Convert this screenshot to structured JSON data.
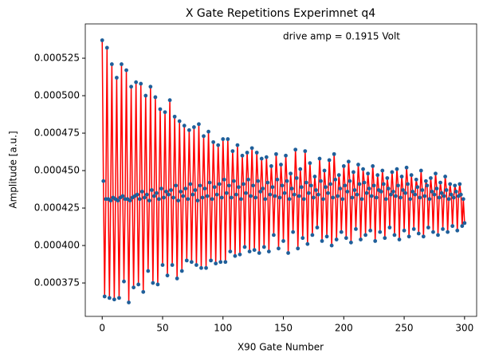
{
  "chart_data": {
    "type": "line",
    "title": "X Gate Repetitions Experimnet q4",
    "xlabel": "X90 Gate Number",
    "ylabel": "Amplitude [a.u.]",
    "annotation": "drive amp = 0.1915 Volt",
    "color": "#ff0000",
    "marker_color": "#1f5f9a",
    "xlim": [
      -14,
      310
    ],
    "ylim": [
      0.0003527,
      0.0005479
    ],
    "xticks": [
      0,
      50,
      100,
      150,
      200,
      250,
      300
    ],
    "yticks": [
      0.000375,
      {
        "value": 0.0004,
        "label": "0.000400"
      },
      0.000425,
      {
        "value": 0.00045,
        "label": "0.000450"
      },
      0.000475,
      {
        "value": 0.0005,
        "label": "0.000500"
      },
      0.000525
    ],
    "x": [
      0,
      1,
      2,
      3,
      4,
      5,
      6,
      7,
      8,
      9,
      10,
      11,
      12,
      13,
      14,
      15,
      16,
      17,
      18,
      19,
      20,
      21,
      22,
      23,
      24,
      25,
      26,
      27,
      28,
      29,
      30,
      31,
      32,
      33,
      34,
      35,
      36,
      37,
      38,
      39,
      40,
      41,
      42,
      43,
      44,
      45,
      46,
      47,
      48,
      49,
      50,
      51,
      52,
      53,
      54,
      55,
      56,
      57,
      58,
      59,
      60,
      61,
      62,
      63,
      64,
      65,
      66,
      67,
      68,
      69,
      70,
      71,
      72,
      73,
      74,
      75,
      76,
      77,
      78,
      79,
      80,
      81,
      82,
      83,
      84,
      85,
      86,
      87,
      88,
      89,
      90,
      91,
      92,
      93,
      94,
      95,
      96,
      97,
      98,
      99,
      100,
      101,
      102,
      103,
      104,
      105,
      106,
      107,
      108,
      109,
      110,
      111,
      112,
      113,
      114,
      115,
      116,
      117,
      118,
      119,
      120,
      121,
      122,
      123,
      124,
      125,
      126,
      127,
      128,
      129,
      130,
      131,
      132,
      133,
      134,
      135,
      136,
      137,
      138,
      139,
      140,
      141,
      142,
      143,
      144,
      145,
      146,
      147,
      148,
      149,
      150,
      151,
      152,
      153,
      154,
      155,
      156,
      157,
      158,
      159,
      160,
      161,
      162,
      163,
      164,
      165,
      166,
      167,
      168,
      169,
      170,
      171,
      172,
      173,
      174,
      175,
      176,
      177,
      178,
      179,
      180,
      181,
      182,
      183,
      184,
      185,
      186,
      187,
      188,
      189,
      190,
      191,
      192,
      193,
      194,
      195,
      196,
      197,
      198,
      199,
      200,
      201,
      202,
      203,
      204,
      205,
      206,
      207,
      208,
      209,
      210,
      211,
      212,
      213,
      214,
      215,
      216,
      217,
      218,
      219,
      220,
      221,
      222,
      223,
      224,
      225,
      226,
      227,
      228,
      229,
      230,
      231,
      232,
      233,
      234,
      235,
      236,
      237,
      238,
      239,
      240,
      241,
      242,
      243,
      244,
      245,
      246,
      247,
      248,
      249,
      250,
      251,
      252,
      253,
      254,
      255,
      256,
      257,
      258,
      259,
      260,
      261,
      262,
      263,
      264,
      265,
      266,
      267,
      268,
      269,
      270,
      271,
      272,
      273,
      274,
      275,
      276,
      277,
      278,
      279,
      280,
      281,
      282,
      283,
      284,
      285,
      286,
      287,
      288,
      289,
      290,
      291,
      292,
      293,
      294,
      295,
      296,
      297,
      298,
      299,
      300
    ],
    "values": [
      0.000537,
      0.000443,
      0.000366,
      0.000431,
      0.000532,
      0.000431,
      0.000365,
      0.00043,
      0.000521,
      0.000432,
      0.000364,
      0.000431,
      0.000512,
      0.00043,
      0.000365,
      0.000432,
      0.000521,
      0.000433,
      0.000376,
      0.000431,
      0.000517,
      0.000431,
      0.000362,
      0.00043,
      0.000506,
      0.000432,
      0.000372,
      0.000433,
      0.000509,
      0.000434,
      0.000374,
      0.000431,
      0.000508,
      0.000436,
      0.000369,
      0.000432,
      0.0005,
      0.000434,
      0.000383,
      0.00043,
      0.000506,
      0.000437,
      0.000375,
      0.000433,
      0.000499,
      0.000435,
      0.000374,
      0.000431,
      0.000491,
      0.000438,
      0.000387,
      0.000432,
      0.000489,
      0.000436,
      0.00038,
      0.000434,
      0.000497,
      0.000437,
      0.000387,
      0.000432,
      0.000486,
      0.00044,
      0.000378,
      0.00043,
      0.000483,
      0.000436,
      0.000383,
      0.000433,
      0.00048,
      0.000438,
      0.00039,
      0.000431,
      0.000477,
      0.000441,
      0.000389,
      0.000434,
      0.000479,
      0.000437,
      0.000387,
      0.00043,
      0.000481,
      0.00044,
      0.000385,
      0.000432,
      0.000473,
      0.000438,
      0.000385,
      0.000433,
      0.000476,
      0.000442,
      0.00039,
      0.000431,
      0.000469,
      0.000439,
      0.000388,
      0.000434,
      0.000467,
      0.000441,
      0.000389,
      0.000432,
      0.000471,
      0.000444,
      0.000389,
      0.000435,
      0.000471,
      0.00044,
      0.000396,
      0.000432,
      0.000463,
      0.000443,
      0.000393,
      0.000434,
      0.000467,
      0.000439,
      0.000394,
      0.000431,
      0.00046,
      0.000441,
      0.000399,
      0.000435,
      0.000462,
      0.000444,
      0.000396,
      0.000433,
      0.000465,
      0.00044,
      0.000397,
      0.000432,
      0.000462,
      0.000443,
      0.000395,
      0.000436,
      0.000458,
      0.000438,
      0.000399,
      0.000431,
      0.000459,
      0.000442,
      0.000396,
      0.000434,
      0.000453,
      0.000439,
      0.000407,
      0.000433,
      0.000461,
      0.000444,
      0.000398,
      0.000432,
      0.000454,
      0.00044,
      0.000403,
      0.000435,
      0.00046,
      0.000443,
      0.000395,
      0.000431,
      0.000448,
      0.000438,
      0.000409,
      0.000434,
      0.000464,
      0.000445,
      0.000398,
      0.000433,
      0.000451,
      0.000439,
      0.000405,
      0.000431,
      0.000463,
      0.000442,
      0.000401,
      0.000435,
      0.000455,
      0.00044,
      0.000407,
      0.000432,
      0.000446,
      0.000437,
      0.000412,
      0.000434,
      0.000458,
      0.000443,
      0.000403,
      0.000431,
      0.00045,
      0.000439,
      0.000406,
      0.000435,
      0.000457,
      0.000441,
      0.0004,
      0.000432,
      0.000461,
      0.000444,
      0.000404,
      0.000433,
      0.000447,
      0.000438,
      0.000409,
      0.000431,
      0.000453,
      0.00044,
      0.000405,
      0.000436,
      0.000456,
      0.000443,
      0.000402,
      0.000432,
      0.000449,
      0.000437,
      0.000411,
      0.000434,
      0.000454,
      0.000441,
      0.000404,
      0.000431,
      0.000451,
      0.000442,
      0.000407,
      0.000435,
      0.000448,
      0.000438,
      0.00041,
      0.000433,
      0.000453,
      0.00044,
      0.000403,
      0.000432,
      0.000447,
      0.000437,
      0.000409,
      0.000436,
      0.00045,
      0.000441,
      0.000405,
      0.000431,
      0.000445,
      0.000438,
      0.000412,
      0.000434,
      0.000449,
      0.000436,
      0.000407,
      0.000433,
      0.000451,
      0.00044,
      0.000404,
      0.000432,
      0.000446,
      0.000437,
      0.00041,
      0.000435,
      0.000452,
      0.000441,
      0.000406,
      0.000431,
      0.000447,
      0.000436,
      0.000411,
      0.000434,
      0.000444,
      0.000439,
      0.000408,
      0.000432,
      0.00045,
      0.000437,
      0.000406,
      0.000433,
      0.000443,
      0.00044,
      0.000412,
      0.000431,
      0.000445,
      0.000436,
      0.000409,
      0.000434,
      0.000448,
      0.000438,
      0.000407,
      0.000432,
      0.000442,
      0.000435,
      0.000411,
      0.000433,
      0.000446,
      0.000437,
      0.000409,
      0.000431,
      0.000441,
      0.000434,
      0.000413,
      0.000432,
      0.00044,
      0.000436,
      0.00041,
      0.000433,
      0.000441,
      0.000434,
      0.000413,
      0.000431,
      0.000415
    ]
  }
}
